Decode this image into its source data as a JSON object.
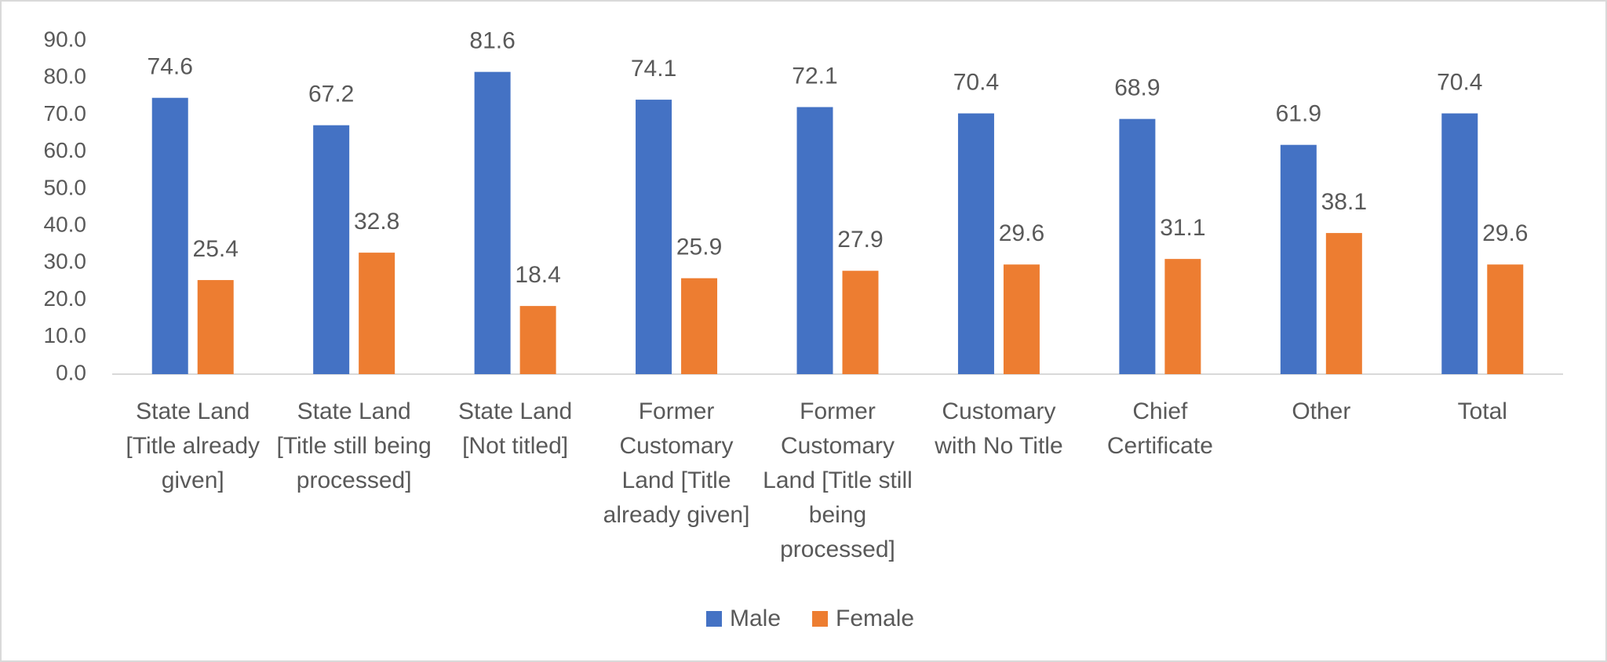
{
  "chart_data": {
    "type": "bar",
    "categories": [
      "State Land [Title already given]",
      "State Land [Title still being processed]",
      "State Land [Not titled]",
      "Former Customary Land [Title already given]",
      "Former Customary Land [Title still being processed]",
      "Customary with No Title",
      "Chief Certificate",
      "Other",
      "Total"
    ],
    "series": [
      {
        "name": "Male",
        "color": "#4472c4",
        "values": [
          74.6,
          67.2,
          81.6,
          74.1,
          72.1,
          70.4,
          68.9,
          61.9,
          70.4
        ]
      },
      {
        "name": "Female",
        "color": "#ed7d31",
        "values": [
          25.4,
          32.8,
          18.4,
          25.9,
          27.9,
          29.6,
          31.1,
          38.1,
          29.6
        ]
      }
    ],
    "ylim": [
      0,
      90
    ],
    "yticks": [
      {
        "value": 0,
        "label": "0.0"
      },
      {
        "value": 10,
        "label": "10.0"
      },
      {
        "value": 20,
        "label": "20.0"
      },
      {
        "value": 30,
        "label": "30.0"
      },
      {
        "value": 40,
        "label": "40.0"
      },
      {
        "value": 50,
        "label": "50.0"
      },
      {
        "value": 60,
        "label": "60.0"
      },
      {
        "value": 70,
        "label": "70.0"
      },
      {
        "value": 80,
        "label": "80.0"
      },
      {
        "value": 90,
        "label": "90.0"
      }
    ],
    "grid": false,
    "legend": "bottom"
  }
}
